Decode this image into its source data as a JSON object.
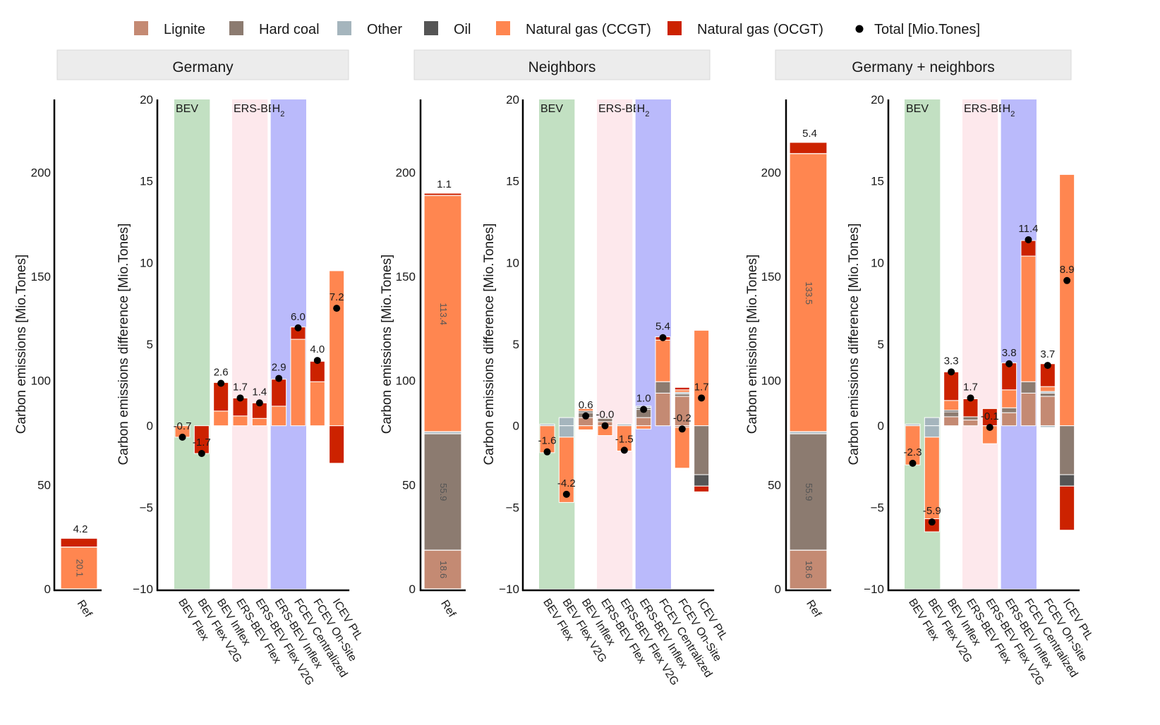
{
  "colors": {
    "lignite": "#c48a73",
    "hardcoal": "#8c7b70",
    "other": "#a5b5bd",
    "oil": "#555555",
    "ccgt": "#ff8650",
    "ocgt": "#cc2200",
    "bev_band": "#c2e0c2",
    "ers_band": "#fde8ec",
    "h2_band": "#babafb",
    "strip_bg": "#ececec",
    "strip_border": "#d9d9d9"
  },
  "chart_data": {
    "type": "bar",
    "legend": {
      "position": "top",
      "entries": [
        {
          "key": "lignite",
          "label": "Lignite"
        },
        {
          "key": "hardcoal",
          "label": "Hard coal"
        },
        {
          "key": "other",
          "label": "Other"
        },
        {
          "key": "oil",
          "label": "Oil"
        },
        {
          "key": "ccgt",
          "label": "Natural gas (CCGT)"
        },
        {
          "key": "ocgt",
          "label": "Natural gas (OCGT)"
        },
        {
          "key": "total",
          "label": "Total [Mio.Tones]"
        }
      ]
    },
    "ref_ylabel": "Carbon emissions [Mio.Tones]",
    "diff_ylabel": "Carbon emissions difference [Mio.Tones]",
    "ref_ylim": [
      0,
      235
    ],
    "ref_yticks": [
      "0",
      "50",
      "100",
      "150",
      "200"
    ],
    "diff_ylim": [
      -10,
      20
    ],
    "diff_yticks": [
      "−10",
      "−5",
      "0",
      "5",
      "10",
      "15",
      "20"
    ],
    "ref_category": "Ref",
    "categories": [
      "BEV Flex",
      "BEV Flex V2G",
      "BEV Inflex",
      "ERS-BEV Flex",
      "ERS-BEV Flex V2G",
      "ERS-BEV Inflex",
      "FCEV Centralized",
      "FCEV On-Site",
      "ICEV PtL"
    ],
    "groups": [
      {
        "label": "BEV",
        "from": 0,
        "to": 1
      },
      {
        "label": "ERS-BEV",
        "from": 3,
        "to": 4
      },
      {
        "label": "H",
        "sub": "2",
        "from": 5,
        "to": 6
      }
    ],
    "panels": [
      {
        "title": "Germany",
        "ref": {
          "segments": [
            {
              "src": "ccgt",
              "value": 20.1
            },
            {
              "src": "ocgt",
              "value": 4.2
            }
          ],
          "labels": [
            {
              "at": 10,
              "text": "20.1"
            }
          ],
          "top_label": "4.2"
        },
        "diff": [
          {
            "pos": [],
            "neg": [
              {
                "src": "ccgt",
                "value": -0.7
              }
            ],
            "total": -0.7,
            "label": "-0.7"
          },
          {
            "pos": [],
            "neg": [
              {
                "src": "ocgt",
                "value": -1.7
              }
            ],
            "total": -1.7,
            "label": "-1.7"
          },
          {
            "pos": [
              {
                "src": "ccgt",
                "value": 0.9
              },
              {
                "src": "ocgt",
                "value": 1.75
              }
            ],
            "neg": [],
            "total": 2.6,
            "label": "2.6"
          },
          {
            "pos": [
              {
                "src": "ccgt",
                "value": 0.6
              },
              {
                "src": "ocgt",
                "value": 1.1
              }
            ],
            "neg": [],
            "total": 1.7,
            "label": "1.7"
          },
          {
            "pos": [
              {
                "src": "ccgt",
                "value": 0.45
              },
              {
                "src": "ocgt",
                "value": 0.95
              }
            ],
            "neg": [],
            "total": 1.4,
            "label": "1.4"
          },
          {
            "pos": [
              {
                "src": "ccgt",
                "value": 1.2
              },
              {
                "src": "ocgt",
                "value": 1.65
              }
            ],
            "neg": [],
            "total": 2.9,
            "label": "2.9"
          },
          {
            "pos": [
              {
                "src": "ccgt",
                "value": 5.3
              },
              {
                "src": "ocgt",
                "value": 0.75
              }
            ],
            "neg": [],
            "total": 6.0,
            "label": "6.0"
          },
          {
            "pos": [
              {
                "src": "ccgt",
                "value": 2.7
              },
              {
                "src": "ocgt",
                "value": 1.25
              }
            ],
            "neg": [],
            "total": 4.0,
            "label": "4.0"
          },
          {
            "pos": [
              {
                "src": "ccgt",
                "value": 9.5
              }
            ],
            "neg": [
              {
                "src": "ocgt",
                "value": -2.3
              }
            ],
            "total": 7.2,
            "label": "7.2"
          }
        ]
      },
      {
        "title": "Neighbors",
        "ref": {
          "segments": [
            {
              "src": "lignite",
              "value": 18.6
            },
            {
              "src": "hardcoal",
              "value": 55.9
            },
            {
              "src": "other",
              "value": 1.0
            },
            {
              "src": "ccgt",
              "value": 113.4
            },
            {
              "src": "ocgt",
              "value": 1.1
            }
          ],
          "labels": [
            {
              "at": 9.3,
              "text": "18.6"
            },
            {
              "at": 46.5,
              "text": "55.9"
            },
            {
              "at": 132,
              "text": "113.4"
            }
          ],
          "top_label": "1.1"
        },
        "diff": [
          {
            "pos": [
              {
                "src": "other",
                "value": 0.1
              }
            ],
            "neg": [
              {
                "src": "ccgt",
                "value": -1.65
              }
            ],
            "total": -1.6,
            "label": "-1.6"
          },
          {
            "pos": [
              {
                "src": "other",
                "value": 0.5
              }
            ],
            "neg": [
              {
                "src": "other",
                "value": -0.7
              },
              {
                "src": "ccgt",
                "value": -4.0
              }
            ],
            "total": -4.2,
            "label": "-4.2"
          },
          {
            "pos": [
              {
                "src": "lignite",
                "value": 0.5
              },
              {
                "src": "hardcoal",
                "value": 0.3
              },
              {
                "src": "oil",
                "value": 0.1
              },
              {
                "src": "ccgt",
                "value": 0.15
              }
            ],
            "neg": [
              {
                "src": "ccgt",
                "value": -0.25
              }
            ],
            "total": 0.6,
            "label": "0.6"
          },
          {
            "pos": [
              {
                "src": "lignite",
                "value": 0.25
              },
              {
                "src": "hardcoal",
                "value": 0.2
              }
            ],
            "neg": [
              {
                "src": "ccgt",
                "value": -0.6
              }
            ],
            "total": -0.0,
            "label": "-0.0"
          },
          {
            "pos": [
              {
                "src": "other",
                "value": 0.1
              }
            ],
            "neg": [
              {
                "src": "ccgt",
                "value": -1.55
              }
            ],
            "total": -1.5,
            "label": "-1.5"
          },
          {
            "pos": [
              {
                "src": "lignite",
                "value": 0.5
              },
              {
                "src": "hardcoal",
                "value": 0.5
              },
              {
                "src": "oil",
                "value": 0.1
              },
              {
                "src": "other",
                "value": 0.1
              }
            ],
            "neg": [
              {
                "src": "ccgt",
                "value": -0.2
              }
            ],
            "total": 1.0,
            "label": "1.0"
          },
          {
            "pos": [
              {
                "src": "lignite",
                "value": 2.0
              },
              {
                "src": "hardcoal",
                "value": 0.7
              },
              {
                "src": "ccgt",
                "value": 2.55
              },
              {
                "src": "ocgt",
                "value": 0.2
              }
            ],
            "neg": [],
            "total": 5.4,
            "label": "5.4"
          },
          {
            "pos": [
              {
                "src": "lignite",
                "value": 1.8
              },
              {
                "src": "hardcoal",
                "value": 0.15
              },
              {
                "src": "other",
                "value": 0.1
              },
              {
                "src": "ccgt",
                "value": 0.15
              },
              {
                "src": "ocgt",
                "value": 0.15
              }
            ],
            "neg": [
              {
                "src": "lignite",
                "value": -0.1
              },
              {
                "src": "ccgt",
                "value": -2.5
              }
            ],
            "total": -0.2,
            "label": "-0.2"
          },
          {
            "pos": [
              {
                "src": "ccgt",
                "value": 5.85
              }
            ],
            "neg": [
              {
                "src": "hardcoal",
                "value": -3.0
              },
              {
                "src": "oil",
                "value": -0.7
              },
              {
                "src": "ocgt",
                "value": -0.35
              }
            ],
            "total": 1.7,
            "label": "1.7"
          }
        ]
      },
      {
        "title": "Germany + neighbors",
        "ref": {
          "segments": [
            {
              "src": "lignite",
              "value": 18.6
            },
            {
              "src": "hardcoal",
              "value": 55.9
            },
            {
              "src": "other",
              "value": 1.0
            },
            {
              "src": "ccgt",
              "value": 133.5
            },
            {
              "src": "ocgt",
              "value": 5.4
            }
          ],
          "labels": [
            {
              "at": 9.3,
              "text": "18.6"
            },
            {
              "at": 46.5,
              "text": "55.9"
            },
            {
              "at": 142,
              "text": "133.5"
            }
          ],
          "top_label": "5.4"
        },
        "diff": [
          {
            "pos": [
              {
                "src": "other",
                "value": 0.1
              }
            ],
            "neg": [
              {
                "src": "ccgt",
                "value": -2.4
              }
            ],
            "total": -2.3,
            "label": "-2.3"
          },
          {
            "pos": [
              {
                "src": "other",
                "value": 0.5
              }
            ],
            "neg": [
              {
                "src": "other",
                "value": -0.7
              },
              {
                "src": "ccgt",
                "value": -5.0
              },
              {
                "src": "ocgt",
                "value": -0.8
              }
            ],
            "total": -5.9,
            "label": "-5.9"
          },
          {
            "pos": [
              {
                "src": "lignite",
                "value": 0.55
              },
              {
                "src": "hardcoal",
                "value": 0.3
              },
              {
                "src": "oil",
                "value": 0.1
              },
              {
                "src": "ccgt",
                "value": 0.6
              },
              {
                "src": "ocgt",
                "value": 1.75
              }
            ],
            "neg": [],
            "total": 3.3,
            "label": "3.3"
          },
          {
            "pos": [
              {
                "src": "lignite",
                "value": 0.35
              },
              {
                "src": "hardcoal",
                "value": 0.2
              },
              {
                "src": "ocgt",
                "value": 1.1
              }
            ],
            "neg": [],
            "total": 1.7,
            "label": "1.7"
          },
          {
            "pos": [
              {
                "src": "ocgt",
                "value": 1.05
              }
            ],
            "neg": [
              {
                "src": "ccgt",
                "value": -1.1
              }
            ],
            "total": -0.1,
            "label": "-0.1"
          },
          {
            "pos": [
              {
                "src": "lignite",
                "value": 0.8
              },
              {
                "src": "hardcoal",
                "value": 0.3
              },
              {
                "src": "ccgt",
                "value": 1.1
              },
              {
                "src": "ocgt",
                "value": 1.65
              }
            ],
            "neg": [],
            "total": 3.8,
            "label": "3.8"
          },
          {
            "pos": [
              {
                "src": "lignite",
                "value": 2.0
              },
              {
                "src": "hardcoal",
                "value": 0.7
              },
              {
                "src": "ccgt",
                "value": 7.7
              },
              {
                "src": "ocgt",
                "value": 0.95
              }
            ],
            "neg": [],
            "total": 11.4,
            "label": "11.4"
          },
          {
            "pos": [
              {
                "src": "lignite",
                "value": 1.8
              },
              {
                "src": "hardcoal",
                "value": 0.2
              },
              {
                "src": "other",
                "value": 0.1
              },
              {
                "src": "ccgt",
                "value": 0.3
              },
              {
                "src": "ocgt",
                "value": 1.4
              }
            ],
            "neg": [
              {
                "src": "other",
                "value": -0.1
              }
            ],
            "total": 3.7,
            "label": "3.7"
          },
          {
            "pos": [
              {
                "src": "ccgt",
                "value": 15.4
              }
            ],
            "neg": [
              {
                "src": "hardcoal",
                "value": -3.0
              },
              {
                "src": "oil",
                "value": -0.7
              },
              {
                "src": "ocgt",
                "value": -2.7
              }
            ],
            "total": 8.9,
            "label": "8.9"
          }
        ]
      }
    ]
  }
}
